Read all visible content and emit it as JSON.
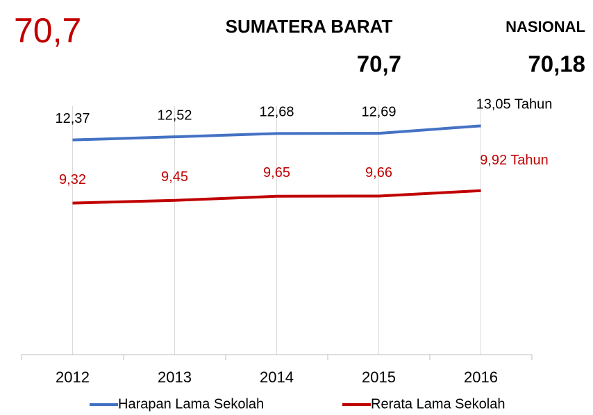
{
  "chart_data": {
    "type": "line",
    "annotations": [
      "70,7",
      "SUMATERA BARAT",
      "70,7",
      "NASIONAL",
      "70,18"
    ],
    "categories": [
      "2012",
      "2013",
      "2014",
      "2015",
      "2016"
    ],
    "series": [
      {
        "name": "Harapan Lama Sekolah",
        "color": "#4472c4",
        "values": [
          12.37,
          12.52,
          12.68,
          12.69,
          13.05
        ],
        "value_labels": [
          "12,37",
          "12,52",
          "12,68",
          "12,69",
          "13,05 Tahun"
        ],
        "label_color": "#000000"
      },
      {
        "name": "Rerata Lama Sekolah",
        "color": "#c00000",
        "values": [
          9.32,
          9.45,
          9.65,
          9.66,
          9.92
        ],
        "value_labels": [
          "9,32",
          "9,45",
          "9,65",
          "9,66",
          "9,92 Tahun"
        ],
        "label_color": "#c00000"
      }
    ],
    "ylim": [
      2,
      14
    ],
    "grid": true,
    "legend": "bottom"
  }
}
